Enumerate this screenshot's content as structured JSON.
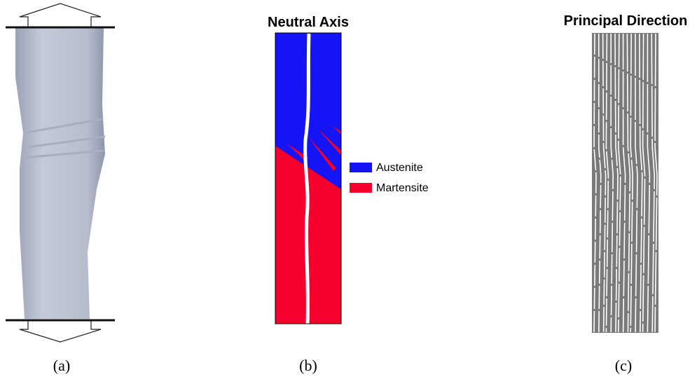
{
  "panels": [
    {
      "caption": "(a)"
    },
    {
      "title": "Neutral Axis",
      "legend": [
        {
          "label": "Austenite",
          "color": "#1414f5"
        },
        {
          "label": "Martensite",
          "color": "#f5002d"
        }
      ],
      "caption": "(b)"
    },
    {
      "title": "Principal Direction",
      "caption": "(c)"
    }
  ]
}
